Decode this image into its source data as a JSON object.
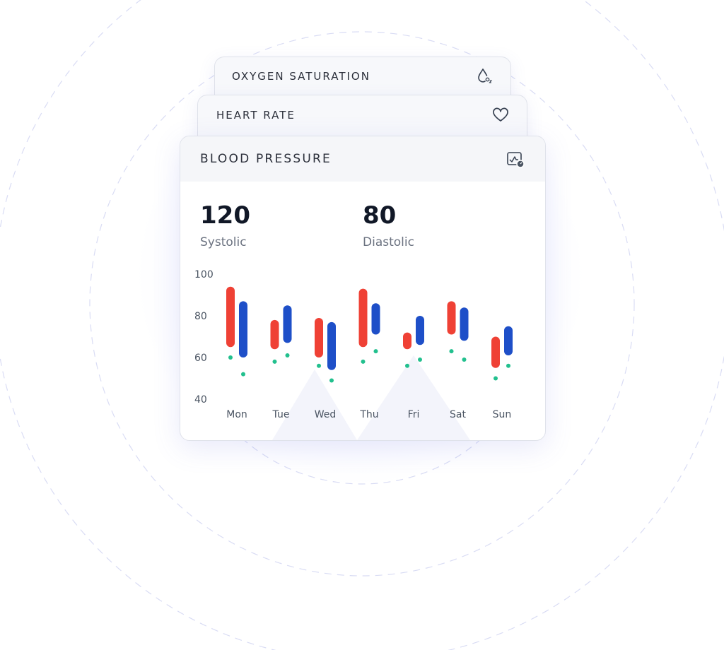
{
  "cards": {
    "oxygen": {
      "title": "OXYGEN SATURATION",
      "icon": "oxygen-drop-icon"
    },
    "heart": {
      "title": "HEART RATE",
      "icon": "heart-icon"
    },
    "blood_pressure": {
      "title": "BLOOD PRESSURE",
      "icon": "blood-pressure-monitor-icon",
      "systolic": {
        "value": "120",
        "label": "Systolic"
      },
      "diastolic": {
        "value": "80",
        "label": "Diastolic"
      }
    }
  },
  "colors": {
    "systolic": "#ef4135",
    "diastolic": "#1e4fc8",
    "dot": "#22c08e",
    "tick_text": "#4b5563"
  },
  "chart_data": {
    "type": "bar",
    "categories": [
      "Mon",
      "Tue",
      "Wed",
      "Thu",
      "Fri",
      "Sat",
      "Sun"
    ],
    "yticks": [
      "100",
      "80",
      "60",
      "40"
    ],
    "ylim": [
      40,
      100
    ],
    "grid": false,
    "series": [
      {
        "low": [
          65,
          64,
          60,
          65,
          64,
          71,
          55
        ],
        "high": [
          94,
          78,
          79,
          93,
          72,
          87,
          70
        ]
      },
      {
        "low": [
          60,
          67,
          54,
          71,
          66,
          68,
          61
        ],
        "high": [
          87,
          85,
          77,
          86,
          80,
          84,
          75
        ]
      }
    ],
    "markers": [
      [
        60,
        52
      ],
      [
        58,
        61
      ],
      [
        56,
        49
      ],
      [
        58,
        63
      ],
      [
        56,
        59
      ],
      [
        63,
        59
      ],
      [
        50,
        56
      ]
    ]
  }
}
